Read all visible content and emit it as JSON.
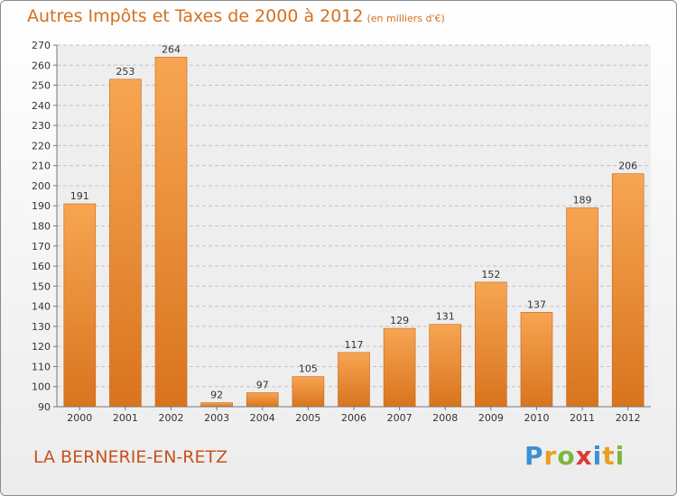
{
  "chart_data": {
    "type": "bar",
    "title": "Autres Impôts et Taxes de 2000 à 2012",
    "subtitle": "(en milliers d'€)",
    "categories": [
      "2000",
      "2001",
      "2002",
      "2003",
      "2004",
      "2005",
      "2006",
      "2007",
      "2008",
      "2009",
      "2010",
      "2011",
      "2012"
    ],
    "values": [
      191,
      253,
      264,
      92,
      97,
      105,
      117,
      129,
      131,
      152,
      137,
      189,
      206
    ],
    "ylim": [
      90,
      270
    ],
    "yticks": [
      90,
      100,
      110,
      120,
      130,
      140,
      150,
      160,
      170,
      180,
      190,
      200,
      210,
      220,
      230,
      240,
      250,
      260,
      270
    ],
    "grid": true,
    "bar_color": "#f0963c"
  },
  "footer": {
    "place": "LA BERNERIE-EN-RETZ",
    "brand": "Proxiti",
    "brand_letters": [
      {
        "ch": "P",
        "color": "#3d8fd6"
      },
      {
        "ch": "r",
        "color": "#e8a020"
      },
      {
        "ch": "o",
        "color": "#7ab83a"
      },
      {
        "ch": "x",
        "color": "#d93a3a"
      },
      {
        "ch": "i",
        "color": "#3d8fd6"
      },
      {
        "ch": "t",
        "color": "#e8a020"
      },
      {
        "ch": "i",
        "color": "#7ab83a"
      }
    ]
  }
}
